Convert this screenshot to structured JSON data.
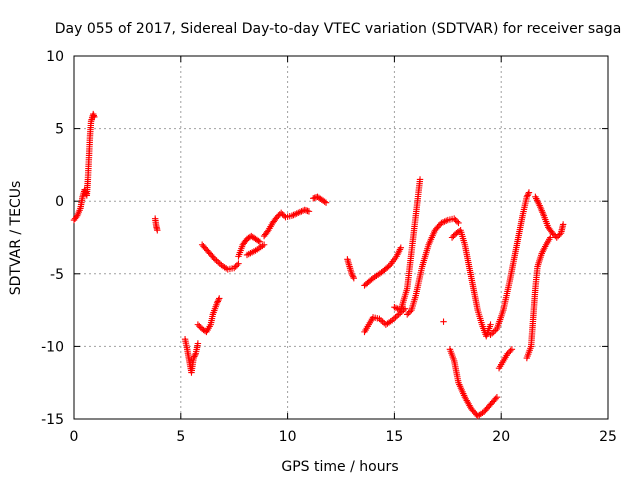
{
  "chart_data": {
    "type": "scatter",
    "title": "Day 055 of 2017, Sidereal Day-to-day VTEC variation (SDTVAR) for receiver saga",
    "xlabel": "GPS time / hours",
    "ylabel": "SDTVAR / TECUs",
    "xlim": [
      0,
      25
    ],
    "ylim": [
      -15,
      10
    ],
    "xticks": [
      0,
      5,
      10,
      15,
      20,
      25
    ],
    "yticks": [
      -15,
      -10,
      -5,
      0,
      5,
      10
    ],
    "xtick_labels": [
      "0",
      "5",
      "10",
      "15",
      "20",
      "25"
    ],
    "ytick_labels": [
      "-15",
      "-10",
      "-5",
      "0",
      "5",
      "10"
    ],
    "grid": true,
    "marker": "+",
    "color": "#ff0000",
    "series": [
      {
        "name": "SDTVAR",
        "segments": [
          [
            [
              0.0,
              -1.3
            ],
            [
              0.15,
              -1.0
            ],
            [
              0.3,
              -0.5
            ],
            [
              0.4,
              0.3
            ],
            [
              0.5,
              0.8
            ],
            [
              0.55,
              0.6
            ],
            [
              0.6,
              0.4
            ],
            [
              0.65,
              1.5
            ],
            [
              0.7,
              3.0
            ],
            [
              0.75,
              4.5
            ],
            [
              0.8,
              5.5
            ],
            [
              0.9,
              6.0
            ],
            [
              0.95,
              5.8
            ]
          ],
          [
            [
              3.8,
              -1.2
            ],
            [
              3.85,
              -1.7
            ],
            [
              3.9,
              -2.0
            ]
          ],
          [
            [
              5.2,
              -9.5
            ],
            [
              5.3,
              -10.2
            ],
            [
              5.4,
              -11.0
            ],
            [
              5.5,
              -11.8
            ],
            [
              5.6,
              -10.8
            ],
            [
              5.7,
              -10.5
            ],
            [
              5.8,
              -9.8
            ]
          ],
          [
            [
              5.8,
              -8.5
            ],
            [
              6.0,
              -8.8
            ],
            [
              6.2,
              -9.0
            ],
            [
              6.4,
              -8.5
            ],
            [
              6.5,
              -7.8
            ],
            [
              6.7,
              -7.0
            ],
            [
              6.8,
              -6.7
            ]
          ],
          [
            [
              6.0,
              -3.0
            ],
            [
              6.3,
              -3.5
            ],
            [
              6.6,
              -4.0
            ],
            [
              6.9,
              -4.4
            ],
            [
              7.2,
              -4.7
            ],
            [
              7.5,
              -4.6
            ],
            [
              7.7,
              -4.3
            ]
          ],
          [
            [
              7.7,
              -3.8
            ],
            [
              7.9,
              -3.0
            ],
            [
              8.1,
              -2.6
            ],
            [
              8.3,
              -2.4
            ],
            [
              8.5,
              -2.6
            ],
            [
              8.7,
              -2.8
            ]
          ],
          [
            [
              8.1,
              -3.7
            ],
            [
              8.5,
              -3.4
            ],
            [
              8.9,
              -3.0
            ]
          ],
          [
            [
              8.9,
              -2.4
            ],
            [
              9.1,
              -2.0
            ],
            [
              9.3,
              -1.5
            ],
            [
              9.5,
              -1.1
            ],
            [
              9.7,
              -0.8
            ],
            [
              9.9,
              -1.1
            ],
            [
              10.2,
              -1.0
            ],
            [
              10.5,
              -0.8
            ],
            [
              10.8,
              -0.6
            ],
            [
              11.0,
              -0.7
            ]
          ],
          [
            [
              11.2,
              0.2
            ],
            [
              11.4,
              0.3
            ],
            [
              11.6,
              0.1
            ],
            [
              11.8,
              -0.1
            ]
          ],
          [
            [
              12.8,
              -4.0
            ],
            [
              12.9,
              -4.5
            ],
            [
              13.0,
              -5.0
            ],
            [
              13.1,
              -5.3
            ]
          ],
          [
            [
              13.6,
              -9.0
            ],
            [
              13.8,
              -8.5
            ],
            [
              14.0,
              -8.0
            ],
            [
              14.3,
              -8.1
            ],
            [
              14.6,
              -8.5
            ],
            [
              14.9,
              -8.2
            ],
            [
              15.2,
              -7.8
            ],
            [
              15.5,
              -7.4
            ]
          ],
          [
            [
              13.6,
              -5.8
            ],
            [
              14.0,
              -5.3
            ],
            [
              14.4,
              -4.9
            ],
            [
              14.8,
              -4.4
            ],
            [
              15.1,
              -3.8
            ],
            [
              15.3,
              -3.2
            ]
          ],
          [
            [
              15.0,
              -7.3
            ],
            [
              15.3,
              -7.5
            ],
            [
              15.6,
              -6.0
            ],
            [
              15.8,
              -3.5
            ],
            [
              16.0,
              -1.0
            ],
            [
              16.2,
              1.5
            ]
          ],
          [
            [
              15.6,
              -7.8
            ],
            [
              15.8,
              -7.5
            ],
            [
              16.0,
              -6.5
            ],
            [
              16.3,
              -4.5
            ],
            [
              16.6,
              -3.0
            ],
            [
              16.9,
              -2.0
            ],
            [
              17.2,
              -1.5
            ],
            [
              17.5,
              -1.3
            ],
            [
              17.8,
              -1.2
            ],
            [
              18.0,
              -1.5
            ]
          ],
          [
            [
              17.3,
              -8.3
            ]
          ],
          [
            [
              17.7,
              -2.5
            ],
            [
              17.9,
              -2.2
            ],
            [
              18.1,
              -2.0
            ],
            [
              18.3,
              -3.0
            ],
            [
              18.5,
              -4.5
            ],
            [
              18.7,
              -6.0
            ],
            [
              18.9,
              -7.5
            ],
            [
              19.1,
              -8.5
            ],
            [
              19.3,
              -9.3
            ],
            [
              19.5,
              -8.5
            ]
          ],
          [
            [
              17.6,
              -10.2
            ],
            [
              17.8,
              -11.0
            ],
            [
              18.0,
              -12.5
            ],
            [
              18.3,
              -13.5
            ],
            [
              18.6,
              -14.3
            ],
            [
              18.9,
              -14.8
            ],
            [
              19.2,
              -14.5
            ],
            [
              19.5,
              -14.0
            ],
            [
              19.8,
              -13.5
            ]
          ],
          [
            [
              19.5,
              -9.2
            ],
            [
              19.8,
              -8.8
            ],
            [
              20.1,
              -7.5
            ],
            [
              20.4,
              -5.5
            ],
            [
              20.6,
              -4.0
            ],
            [
              20.8,
              -2.5
            ],
            [
              21.0,
              -1.0
            ],
            [
              21.2,
              0.3
            ],
            [
              21.3,
              0.6
            ]
          ],
          [
            [
              19.9,
              -11.5
            ],
            [
              20.1,
              -11.0
            ],
            [
              20.3,
              -10.5
            ],
            [
              20.5,
              -10.2
            ]
          ],
          [
            [
              21.2,
              -10.8
            ],
            [
              21.4,
              -10.0
            ],
            [
              21.5,
              -8.0
            ],
            [
              21.6,
              -6.0
            ],
            [
              21.7,
              -4.5
            ],
            [
              21.9,
              -3.6
            ],
            [
              22.1,
              -3.0
            ],
            [
              22.3,
              -2.5
            ]
          ],
          [
            [
              21.6,
              0.3
            ],
            [
              21.8,
              -0.3
            ],
            [
              22.0,
              -1.0
            ],
            [
              22.2,
              -1.8
            ],
            [
              22.4,
              -2.2
            ],
            [
              22.6,
              -2.5
            ],
            [
              22.8,
              -2.2
            ],
            [
              22.9,
              -1.6
            ]
          ]
        ]
      }
    ]
  }
}
